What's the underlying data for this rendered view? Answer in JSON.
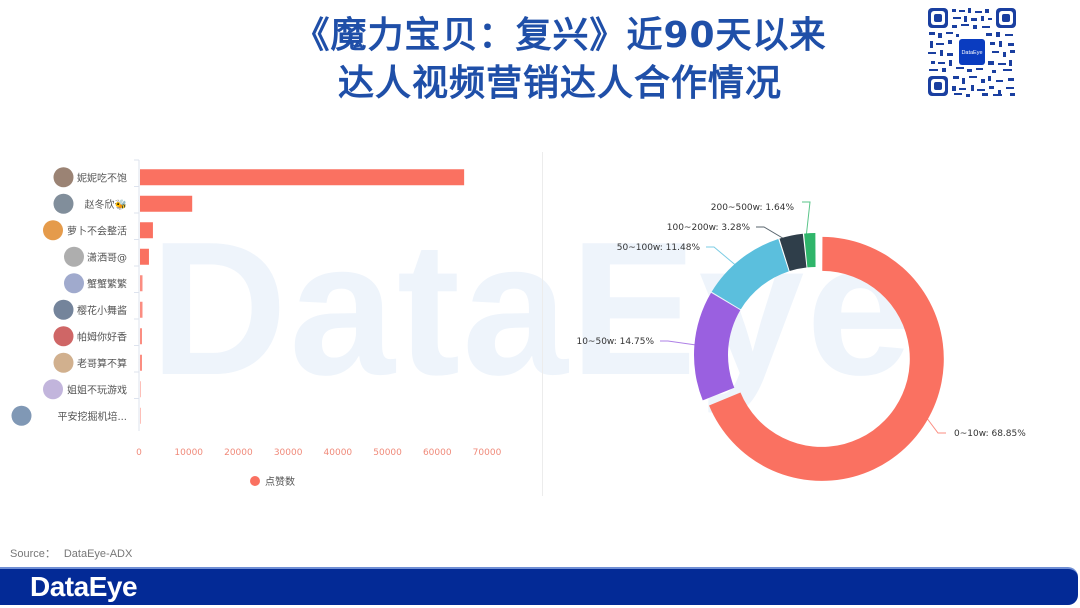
{
  "title": {
    "line1": "《魔力宝贝：复兴》近90天以来",
    "line2": "达人视频营销达人合作情况"
  },
  "qr_code": {
    "center_label": "DataEye"
  },
  "watermark": "DataEye",
  "source": {
    "label": "Source：",
    "value": "DataEye-ADX"
  },
  "footer": {
    "logo": "DataEye",
    "color": "#032a96"
  },
  "chart_data": [
    {
      "type": "bar",
      "orientation": "horizontal",
      "title": "",
      "categories": [
        "妮妮吃不饱",
        "赵冬欣🐝",
        "萝卜不会整活",
        "潇洒哥@",
        "蟹蟹繁繁",
        "樱花小舞酱",
        "帕姆你好香",
        "老哥算不算",
        "姐姐不玩游戏",
        "平安挖掘机培..."
      ],
      "series": [
        {
          "name": "点赞数",
          "color": "#fa7161",
          "values": [
            65200,
            10500,
            2600,
            1800,
            500,
            500,
            400,
            400,
            200,
            200
          ]
        }
      ],
      "xlabel": "",
      "ylabel": "",
      "xlim": [
        0,
        70000
      ],
      "x_ticks": [
        "0",
        "10000",
        "20000",
        "30000",
        "40000",
        "50000",
        "60000",
        "70000"
      ],
      "legend": {
        "position": "bottom",
        "entries": [
          "点赞数"
        ]
      },
      "grid": false
    },
    {
      "type": "pie",
      "style": "donut",
      "title": "",
      "categories": [
        "0~10w",
        "10~50w",
        "50~100w",
        "100~200w",
        "200~500w"
      ],
      "values": [
        68.85,
        14.75,
        11.48,
        3.28,
        1.64
      ],
      "labels": [
        "0~10w: 68.85%",
        "10~50w: 14.75%",
        "50~100w: 11.48%",
        "100~200w: 3.28%",
        "200~500w: 1.64%"
      ],
      "colors": [
        "#fa7161",
        "#9a60e0",
        "#5bbfdd",
        "#2f3e4a",
        "#2fb56a"
      ],
      "exploded": [
        "0~10w"
      ]
    }
  ]
}
